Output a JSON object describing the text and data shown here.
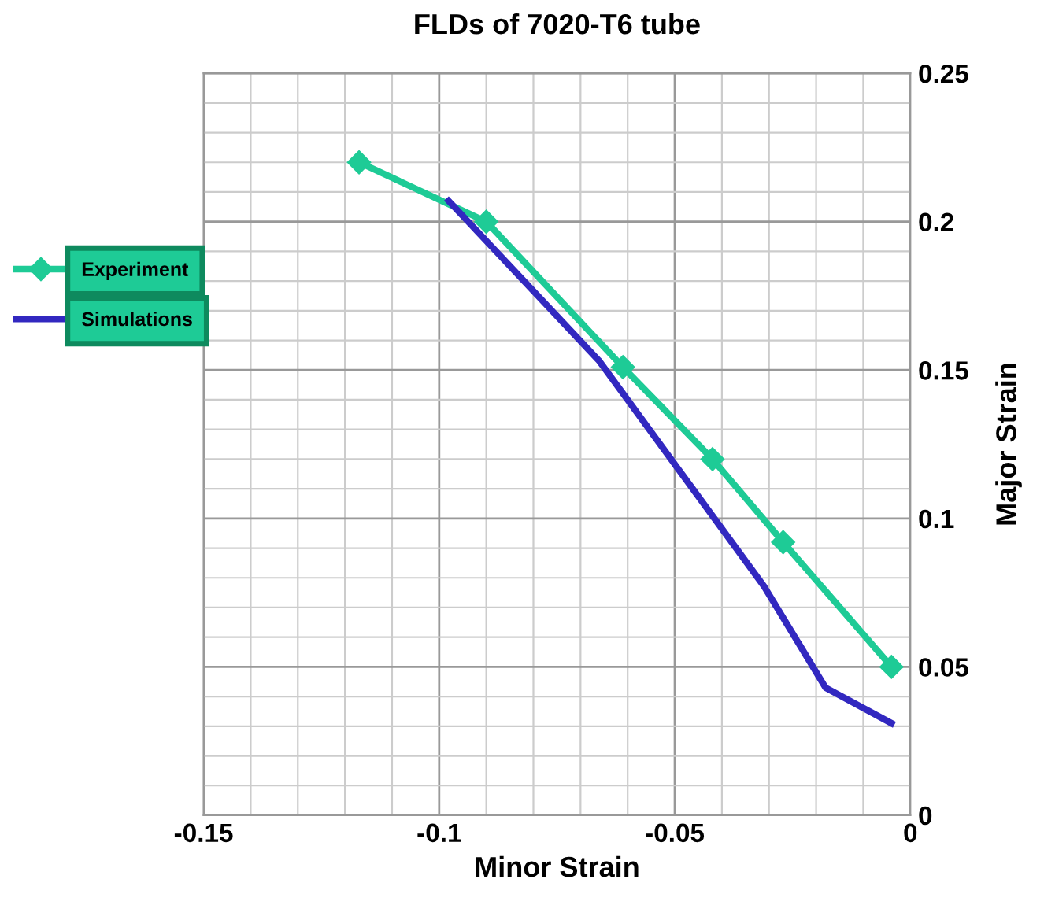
{
  "chart_data": {
    "type": "line",
    "title": "FLDs of 7020-T6 tube",
    "xlabel": "Minor Strain",
    "ylabel": "Major Strain",
    "xlim": [
      -0.15,
      0
    ],
    "xticks": [
      -0.15,
      -0.1,
      -0.05,
      0
    ],
    "ylim": [
      0,
      0.25
    ],
    "yticks": [
      0,
      0.05,
      0.1,
      0.15,
      0.2,
      0.25
    ],
    "grid": true,
    "legend": "left",
    "series": [
      {
        "name": "Experiment",
        "color": "#1ecb96",
        "marker": "diamond",
        "x": [
          -0.117,
          -0.09,
          -0.061,
          -0.042,
          -0.027,
          -0.004
        ],
        "values": [
          0.22,
          0.2,
          0.151,
          0.12,
          0.092,
          0.05
        ]
      },
      {
        "name": "Simulations",
        "color": "#3228c0",
        "marker": "none",
        "x": [
          -0.098,
          -0.066,
          -0.031,
          -0.018,
          -0.004
        ],
        "values": [
          0.207,
          0.153,
          0.077,
          0.043,
          0.031
        ]
      }
    ]
  }
}
